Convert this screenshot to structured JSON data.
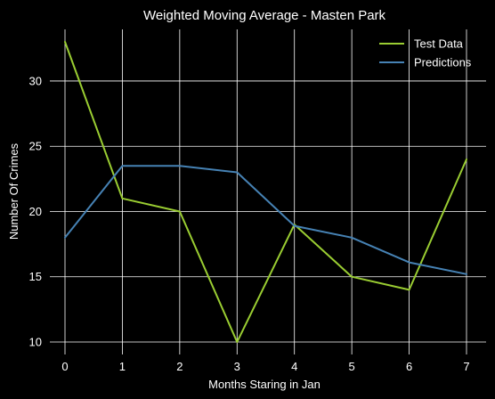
{
  "chart_data": {
    "type": "line",
    "title": "Weighted Moving Average - Masten Park",
    "xlabel": "Months Staring in Jan",
    "ylabel": "Number Of Crimes",
    "x": [
      0,
      1,
      2,
      3,
      4,
      5,
      6,
      7
    ],
    "xticks": [
      "0",
      "1",
      "2",
      "3",
      "4",
      "5",
      "6",
      "7"
    ],
    "yticks": [
      "10",
      "15",
      "20",
      "25",
      "30"
    ],
    "xlim": [
      0,
      7
    ],
    "ylim": [
      10,
      33
    ],
    "grid": true,
    "legend_position": "top-right",
    "series": [
      {
        "name": "Test Data",
        "color": "#9acd32",
        "values": [
          33,
          21,
          20,
          10,
          19,
          15,
          14,
          24
        ]
      },
      {
        "name": "Predictions",
        "color": "#4682b4",
        "values": [
          18,
          23.5,
          23.5,
          23,
          18.9,
          18,
          16.1,
          15.2
        ]
      }
    ]
  }
}
